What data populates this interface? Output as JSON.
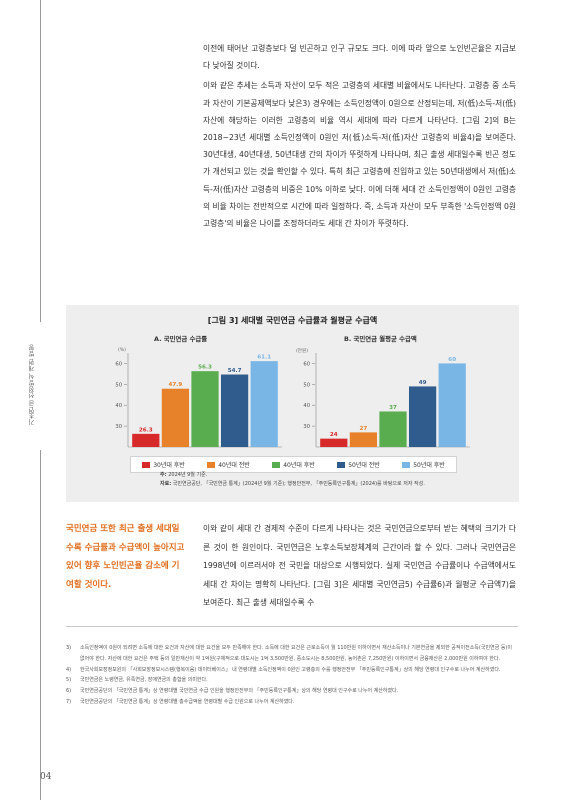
{
  "page": {
    "running_title": "기초연금 선정방식 개편 방향",
    "page_number": "04"
  },
  "body": {
    "paragraphs": [
      "이전에 태어난 고령층보다 덜 빈곤하고 인구 규모도 크다. 이에 따라 앞으로 노인빈곤율은 지금보다 낮아질 것이다.",
      "이와 같은 추세는 소득과 자산이 모두 적은 고령층의 세대별 비율에서도 나타난다. 고령층 중 소득과 자산이 기본공제액보다 낮은3) 경우에는 소득인정액이 0원으로 산정되는데, 저(低)소득-저(低)자산에 해당하는 이러한 고령층의 비율 역시 세대에 따라 다르게 나타난다. [그림 2]의 B는 2018~23년 세대별 소득인정액이 0원인 저(低)소득-저(低)자산 고령층의 비율4)을 보여준다. 30년대생, 40년대생, 50년대생 간의 차이가 뚜렷하게 나타나며, 최근 출생 세대일수록 빈곤 정도가 개선되고 있는 것을 확인할 수 있다. 특히 최근 고령층에 진입하고 있는 50년대생에서 저(低)소득-저(低)자산 고령층의 비중은 10% 이하로 낮다. 이에 더해 세대 간 소득인정액이 0원인 고령층의 비율 차이는 전반적으로 시간에 따라 일정하다. 즉, 소득과 자산이 모두 부족한 '소득인정액 0원 고령층'의 비율은 나이를 조정하더라도 세대 간 차이가 뚜렷하다."
    ]
  },
  "figure": {
    "title": "[그림 3] 세대별 국민연금 수급률과 월평균 수급액",
    "note_label": "주:",
    "note_text": "2024년 9월 기준.",
    "source_label": "자료:",
    "source_text": "국민연금공단, 「국민연금 통계」(2024년 9월 기준); 행정안전부, 「주민등록인구통계」(2024)를 바탕으로 저자 작성."
  },
  "chart_data": [
    {
      "type": "bar",
      "title": "A. 국민연금 수급률",
      "unit": "(%)",
      "categories": [
        "30년대 후반",
        "40년대 전반",
        "40년대 후반",
        "50년대 전반",
        "50년대 후반"
      ],
      "values": [
        26.3,
        47.9,
        56.3,
        54.7,
        61.1
      ],
      "value_labels": [
        "26.3",
        "47.9",
        "56.3",
        "54.7",
        "61.1"
      ],
      "ylim": [
        20,
        65
      ],
      "yticks": [
        "30",
        "40",
        "50",
        "60"
      ],
      "grid": false
    },
    {
      "type": "bar",
      "title": "B. 국민연금 월평균 수급액",
      "unit": "(만원)",
      "categories": [
        "30년대 후반",
        "40년대 전반",
        "40년대 후반",
        "50년대 전반",
        "50년대 후반"
      ],
      "values": [
        24,
        27,
        37,
        49,
        60
      ],
      "value_labels": [
        "24",
        "27",
        "37",
        "49",
        "60"
      ],
      "ylim": [
        20,
        65
      ],
      "yticks": [
        "30",
        "40",
        "50",
        "60"
      ],
      "grid": false
    }
  ],
  "series_colors": [
    "#d7282a",
    "#e8822a",
    "#5aad4e",
    "#2f5c8c",
    "#79b6e6"
  ],
  "legend": [
    "30년대 후반",
    "40년대 전반",
    "40년대 후반",
    "50년대 전반",
    "50년대 후반"
  ],
  "callout": "국민연금 또한 최근 출생 세대일수록 수급률과 수급액이 높아지고 있어 향후 노인빈곤율 감소에 기여할 것이다.",
  "lower_text": "이와 같이 세대 간 경제적 수준이 다르게 나타나는 것은 국민연금으로부터 받는 혜택의 크기가 다른 것이 한 원인이다. 국민연금은 노후소득보장체계의 근간이라 할 수 있다. 그러나 국민연금은 1998년에 이르러서야 전 국민을 대상으로 시행되었다. 실제 국민연금 수급률이나 수급액에서도 세대 간 차이는 명확히 나타난다. [그림 3]은 세대별 국민연금5) 수급률6)과 월평균 수급액7)을 보여준다. 최근 출생 세대일수록 수",
  "footnotes": [
    {
      "num": "3)",
      "text": "소득인정액이 0원이 되려면 소득에 대한 요건과 자산에 대한 요건을 모두 만족해야 한다. 소득에 대한 요건은 근로소득이 월 110만원 이하이면서 재산소득이나 기본연금을 제외한 공적이전소득(국민연금 등)이 없어야 한다. 자산에 대한 요건은 주택 등의 일반재산이 약 1억원(구체적으로 대도시는 1억 3,500만원, 중소도시는 8,500만원, 농어촌은 7,250만원) 이하이면서 금융재산은 2,000만원 이하여야 한다."
    },
    {
      "num": "4)",
      "text": "한국사회보장정보원의 「사회보장정보시스템(행복이음) 데이터베이스」 내 연령대별 소득인정액이 0원인 고령층의 수를 행정안전부 「주민등록인구통계」상의 해당 연령대 인구수로 나누어 계산하였다."
    },
    {
      "num": "5)",
      "text": "국민연금은 노령연금, 유족연금, 장애연금의 총합을 의미한다."
    },
    {
      "num": "6)",
      "text": "국민연금공단의 「국민연금 통계」상 연령대별 국민연금 수급 인원을 행정안전부의 「주민등록인구통계」상의 해당 연령대 인구수로 나누어 계산하였다."
    },
    {
      "num": "7)",
      "text": "국민연금공단의 「국민연금 통계」상 연령대별 총수급액을 연령대별 수급 인원으로 나누어 계산하였다."
    }
  ]
}
